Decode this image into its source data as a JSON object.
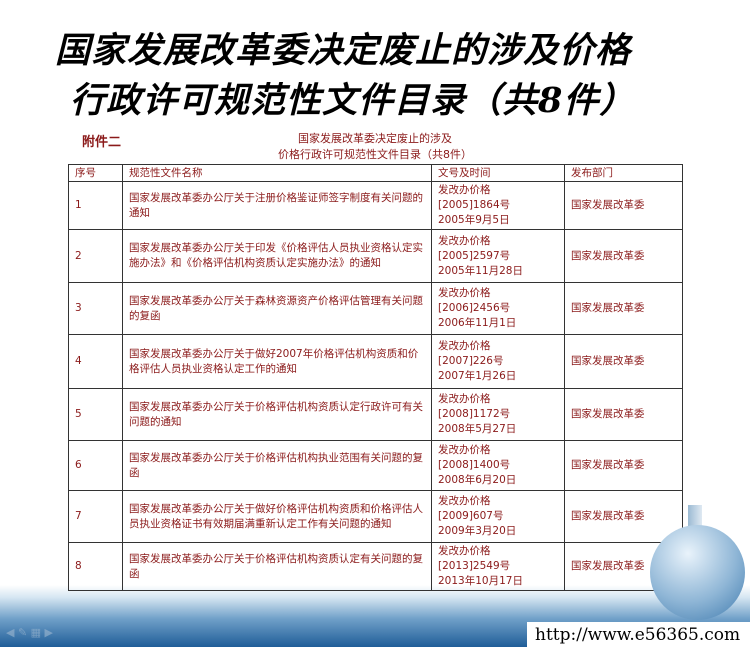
{
  "slide": {
    "title_line1": "国家发展改革委决定废止的涉及价格",
    "title_line2": "行政许可规范性文件目录（共8件）"
  },
  "document": {
    "annex": "附件二",
    "subtitle_line1": "国家发展改革委决定废止的涉及",
    "subtitle_line2": "价格行政许可规范性文件目录（共8件）"
  },
  "table": {
    "headers": [
      "序号",
      "规范性文件名称",
      "文号及时间",
      "发布部门"
    ],
    "rows": [
      {
        "no": "1",
        "name": "国家发展改革委办公厅关于注册价格鉴证师签字制度有关问题的通知",
        "doc": "发改办价格[2005]1864号",
        "date": "2005年9月5日",
        "dept": "国家发展改革委"
      },
      {
        "no": "2",
        "name": "国家发展改革委办公厅关于印发《价格评估人员执业资格认定实施办法》和《价格评估机构资质认定实施办法》的通知",
        "doc": "发改办价格[2005]2597号",
        "date": "2005年11月28日",
        "dept": "国家发展改革委"
      },
      {
        "no": "3",
        "name": "国家发展改革委办公厅关于森林资源资产价格评估管理有关问题的复函",
        "doc": "发改办价格[2006]2456号",
        "date": "2006年11月1日",
        "dept": "国家发展改革委"
      },
      {
        "no": "4",
        "name": "国家发展改革委办公厅关于做好2007年价格评估机构资质和价格评估人员执业资格认定工作的通知",
        "doc": "发改办价格[2007]226号",
        "date": "2007年1月26日",
        "dept": "国家发展改革委"
      },
      {
        "no": "5",
        "name": "国家发展改革委办公厅关于价格评估机构资质认定行政许可有关问题的通知",
        "doc": "发改办价格[2008]1172号",
        "date": "2008年5月27日",
        "dept": "国家发展改革委"
      },
      {
        "no": "6",
        "name": "国家发展改革委办公厅关于价格评估机构执业范围有关问题的复函",
        "doc": "发改办价格[2008]1400号",
        "date": "2008年6月20日",
        "dept": "国家发展改革委"
      },
      {
        "no": "7",
        "name": "国家发展改革委办公厅关于做好价格评估机构资质和价格评估人员执业资格证书有效期届满重新认定工作有关问题的通知",
        "doc": "发改办价格[2009]607号",
        "date": "2009年3月20日",
        "dept": "国家发展改革委"
      },
      {
        "no": "8",
        "name": "国家发展改革委办公厅关于价格评估机构资质认定有关问题的复函",
        "doc": "发改办价格[2013]2549号",
        "date": "2013年10月17日",
        "dept": "国家发展改革委"
      }
    ]
  },
  "watermark": {
    "url": "http://www.e56365.com"
  },
  "colors": {
    "text": "#8b1a1a",
    "footer_blue": "#1f5d98"
  }
}
